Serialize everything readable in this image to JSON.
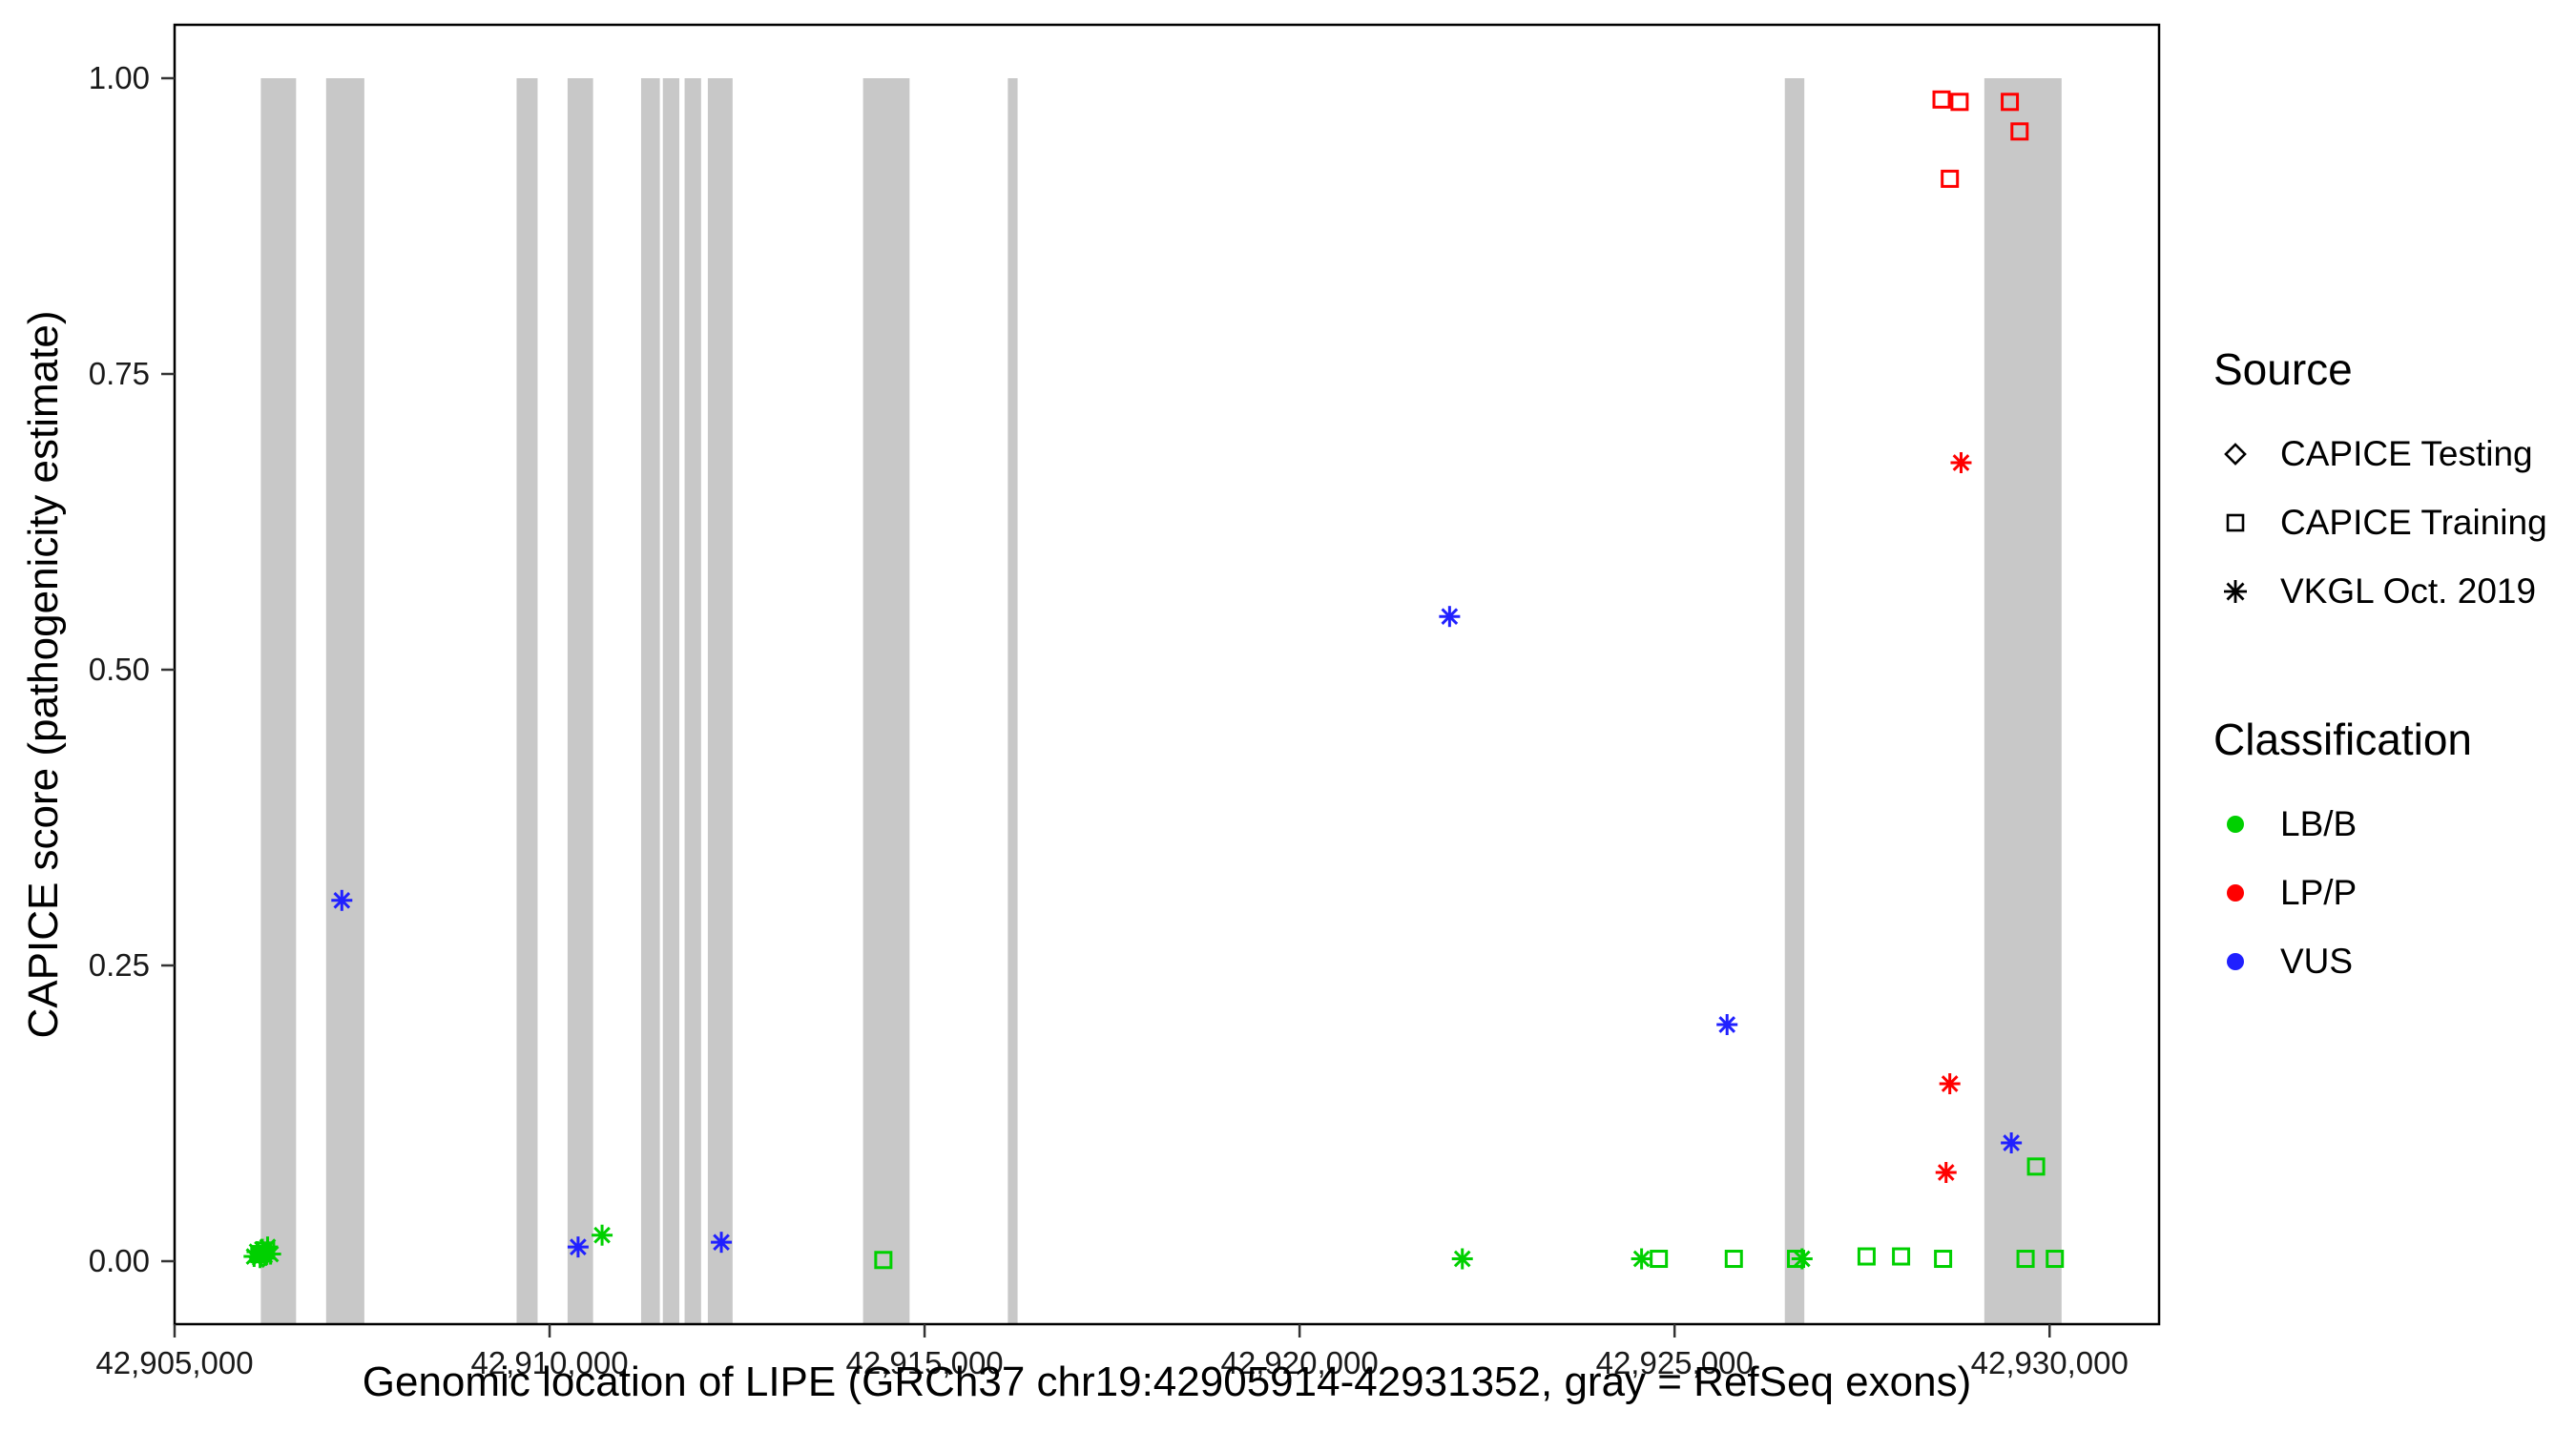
{
  "chart_data": {
    "type": "scatter",
    "title": "",
    "xlabel": "Genomic location of LIPE (GRCh37 chr19:42905914-42931352, gray = RefSeq exons)",
    "ylabel": "CAPICE score (pathogenicity estimate)",
    "xlim": [
      42905000,
      42931460
    ],
    "ylim": [
      -0.05,
      1.04
    ],
    "x_ticks": [
      42905000,
      42910000,
      42915000,
      42920000,
      42925000,
      42930000
    ],
    "x_tick_labels": [
      "42,905,000",
      "42,910,000",
      "42,915,000",
      "42,920,000",
      "42,925,000",
      "42,930,000"
    ],
    "y_ticks": [
      0,
      0.25,
      0.5,
      0.75,
      1
    ],
    "y_tick_labels": [
      "0.00",
      "0.25",
      "0.50",
      "0.75",
      "1.00"
    ],
    "grid": false,
    "legend_position": "right",
    "exon_color": "#c8c8c8",
    "exons": [
      [
        42906150,
        42906620
      ],
      [
        42907020,
        42907530
      ],
      [
        42909560,
        42909840
      ],
      [
        42910240,
        42910580
      ],
      [
        42911220,
        42911470
      ],
      [
        42911510,
        42911730
      ],
      [
        42911800,
        42912020
      ],
      [
        42912110,
        42912440
      ],
      [
        42914180,
        42914800
      ],
      [
        42916110,
        42916240
      ],
      [
        42926470,
        42926730
      ],
      [
        42929130,
        42930160
      ]
    ],
    "colors": {
      "lbb": "#00d000",
      "lpp": "#ff0000",
      "vus": "#2020ff"
    },
    "points": [
      {
        "x": 42906060,
        "y": 0.004,
        "s": "vkgl",
        "c": "lbb"
      },
      {
        "x": 42906100,
        "y": 0.008,
        "s": "vkgl",
        "c": "lbb"
      },
      {
        "x": 42906140,
        "y": 0.003,
        "s": "vkgl",
        "c": "lbb"
      },
      {
        "x": 42906170,
        "y": 0.01,
        "s": "vkgl",
        "c": "lbb"
      },
      {
        "x": 42906200,
        "y": 0.005,
        "s": "vkgl",
        "c": "lbb"
      },
      {
        "x": 42906240,
        "y": 0.012,
        "s": "vkgl",
        "c": "lbb"
      },
      {
        "x": 42906280,
        "y": 0.006,
        "s": "vkgl",
        "c": "lbb"
      },
      {
        "x": 42906130,
        "y": 0.006,
        "s": "training",
        "c": "lbb"
      },
      {
        "x": 42906220,
        "y": 0.009,
        "s": "training",
        "c": "lbb"
      },
      {
        "x": 42906180,
        "y": 0.004,
        "s": "testing",
        "c": "lbb"
      },
      {
        "x": 42907230,
        "y": 0.305,
        "s": "vkgl",
        "c": "vus"
      },
      {
        "x": 42910380,
        "y": 0.012,
        "s": "vkgl",
        "c": "vus"
      },
      {
        "x": 42910700,
        "y": 0.022,
        "s": "vkgl",
        "c": "lbb"
      },
      {
        "x": 42912290,
        "y": 0.016,
        "s": "vkgl",
        "c": "vus"
      },
      {
        "x": 42914450,
        "y": 0.001,
        "s": "training",
        "c": "lbb"
      },
      {
        "x": 42922000,
        "y": 0.545,
        "s": "vkgl",
        "c": "vus"
      },
      {
        "x": 42922170,
        "y": 0.002,
        "s": "vkgl",
        "c": "lbb"
      },
      {
        "x": 42924560,
        "y": 0.002,
        "s": "vkgl",
        "c": "lbb"
      },
      {
        "x": 42924790,
        "y": 0.002,
        "s": "training",
        "c": "lbb"
      },
      {
        "x": 42925700,
        "y": 0.2,
        "s": "vkgl",
        "c": "vus"
      },
      {
        "x": 42925790,
        "y": 0.002,
        "s": "training",
        "c": "lbb"
      },
      {
        "x": 42926620,
        "y": 0.002,
        "s": "training",
        "c": "lbb"
      },
      {
        "x": 42926700,
        "y": 0.002,
        "s": "vkgl",
        "c": "lbb"
      },
      {
        "x": 42927560,
        "y": 0.004,
        "s": "training",
        "c": "lbb"
      },
      {
        "x": 42928020,
        "y": 0.004,
        "s": "training",
        "c": "lbb"
      },
      {
        "x": 42928580,
        "y": 0.002,
        "s": "training",
        "c": "lbb"
      },
      {
        "x": 42928560,
        "y": 0.982,
        "s": "training",
        "c": "lpp"
      },
      {
        "x": 42928800,
        "y": 0.98,
        "s": "training",
        "c": "lpp"
      },
      {
        "x": 42928670,
        "y": 0.915,
        "s": "training",
        "c": "lpp"
      },
      {
        "x": 42929470,
        "y": 0.98,
        "s": "training",
        "c": "lpp"
      },
      {
        "x": 42929600,
        "y": 0.955,
        "s": "training",
        "c": "lpp"
      },
      {
        "x": 42928820,
        "y": 0.675,
        "s": "vkgl",
        "c": "lpp"
      },
      {
        "x": 42928670,
        "y": 0.15,
        "s": "vkgl",
        "c": "lpp"
      },
      {
        "x": 42928620,
        "y": 0.075,
        "s": "vkgl",
        "c": "lpp"
      },
      {
        "x": 42929490,
        "y": 0.1,
        "s": "vkgl",
        "c": "vus"
      },
      {
        "x": 42929820,
        "y": 0.08,
        "s": "training",
        "c": "lbb"
      },
      {
        "x": 42929680,
        "y": 0.002,
        "s": "training",
        "c": "lbb"
      },
      {
        "x": 42930070,
        "y": 0.002,
        "s": "training",
        "c": "lbb"
      }
    ]
  },
  "legend": {
    "source_title": "Source",
    "source_items": [
      {
        "label": "CAPICE Testing",
        "marker": "diamond-icon"
      },
      {
        "label": "CAPICE Training",
        "marker": "square-icon"
      },
      {
        "label": "VKGL Oct. 2019",
        "marker": "asterisk-icon"
      }
    ],
    "classification_title": "Classification",
    "classification_items": [
      {
        "label": "LB/B",
        "color": "#00d000"
      },
      {
        "label": "LP/P",
        "color": "#ff0000"
      },
      {
        "label": "VUS",
        "color": "#2020ff"
      }
    ]
  }
}
